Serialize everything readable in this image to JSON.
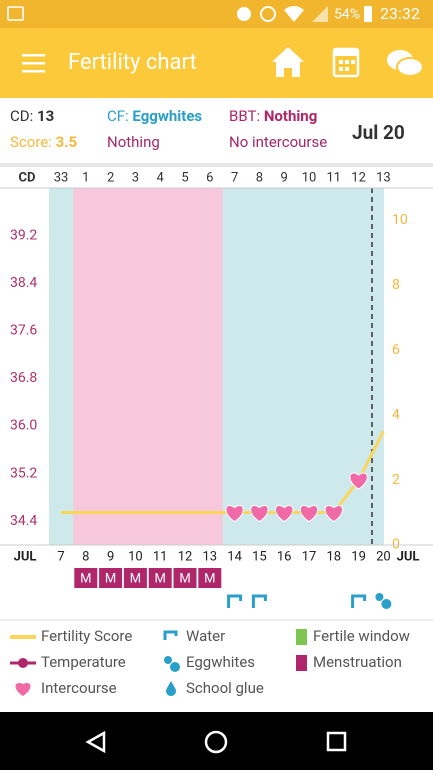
{
  "status_bar": {
    "battery": "54%",
    "time": "23:32"
  },
  "app_bar": {
    "title": "Fertility chart"
  },
  "summary": {
    "cd_label": "CD:",
    "cd": "13",
    "score_label": "Score:",
    "score": "3.5",
    "cf_label": "CF:",
    "cf": "Eggwhites",
    "cf_status": "Nothing",
    "bbt_label": "BBT:",
    "bbt": "Nothing",
    "intercourse": "No intercourse",
    "date": "Jul 20"
  },
  "chart_data": {
    "type": "line",
    "cd_label": "CD",
    "month": "JUL",
    "cycle_days": [
      "33",
      "1",
      "2",
      "3",
      "4",
      "5",
      "6",
      "7",
      "8",
      "9",
      "10",
      "11",
      "12",
      "13"
    ],
    "categories": [
      "7",
      "8",
      "9",
      "10",
      "11",
      "12",
      "13",
      "14",
      "15",
      "16",
      "17",
      "18",
      "19",
      "20"
    ],
    "series": [
      {
        "name": "Fertility Score",
        "color": "#fcd65a",
        "axis": "y2",
        "values": [
          1,
          1,
          1,
          1,
          1,
          1,
          1,
          1,
          1,
          1,
          1,
          1,
          2,
          3.5
        ]
      }
    ],
    "ylim": [
      34.0,
      40.0
    ],
    "yticks": [
      34.4,
      35.2,
      {
        "value": 36,
        "label": "36.0"
      },
      36.8,
      37.6,
      38.4,
      39.2
    ],
    "y2lim": [
      0,
      11
    ],
    "y2ticks": [
      0,
      2,
      4,
      6,
      8,
      10
    ],
    "menstruation": [
      false,
      true,
      true,
      true,
      true,
      true,
      true,
      false,
      false,
      false,
      false,
      false,
      false,
      false
    ],
    "menstruation_mark": "M",
    "intercourse": [
      false,
      false,
      false,
      false,
      false,
      false,
      false,
      true,
      true,
      true,
      true,
      true,
      true,
      false
    ],
    "cervical_fluid": [
      null,
      null,
      null,
      null,
      null,
      null,
      null,
      "water",
      "water",
      null,
      null,
      null,
      "water",
      "eggwhites"
    ],
    "legend_items": [
      "Temperature",
      "Intercourse",
      "Water",
      "Eggwhites",
      "School glue",
      "Fertile window",
      "Menstruation"
    ]
  }
}
